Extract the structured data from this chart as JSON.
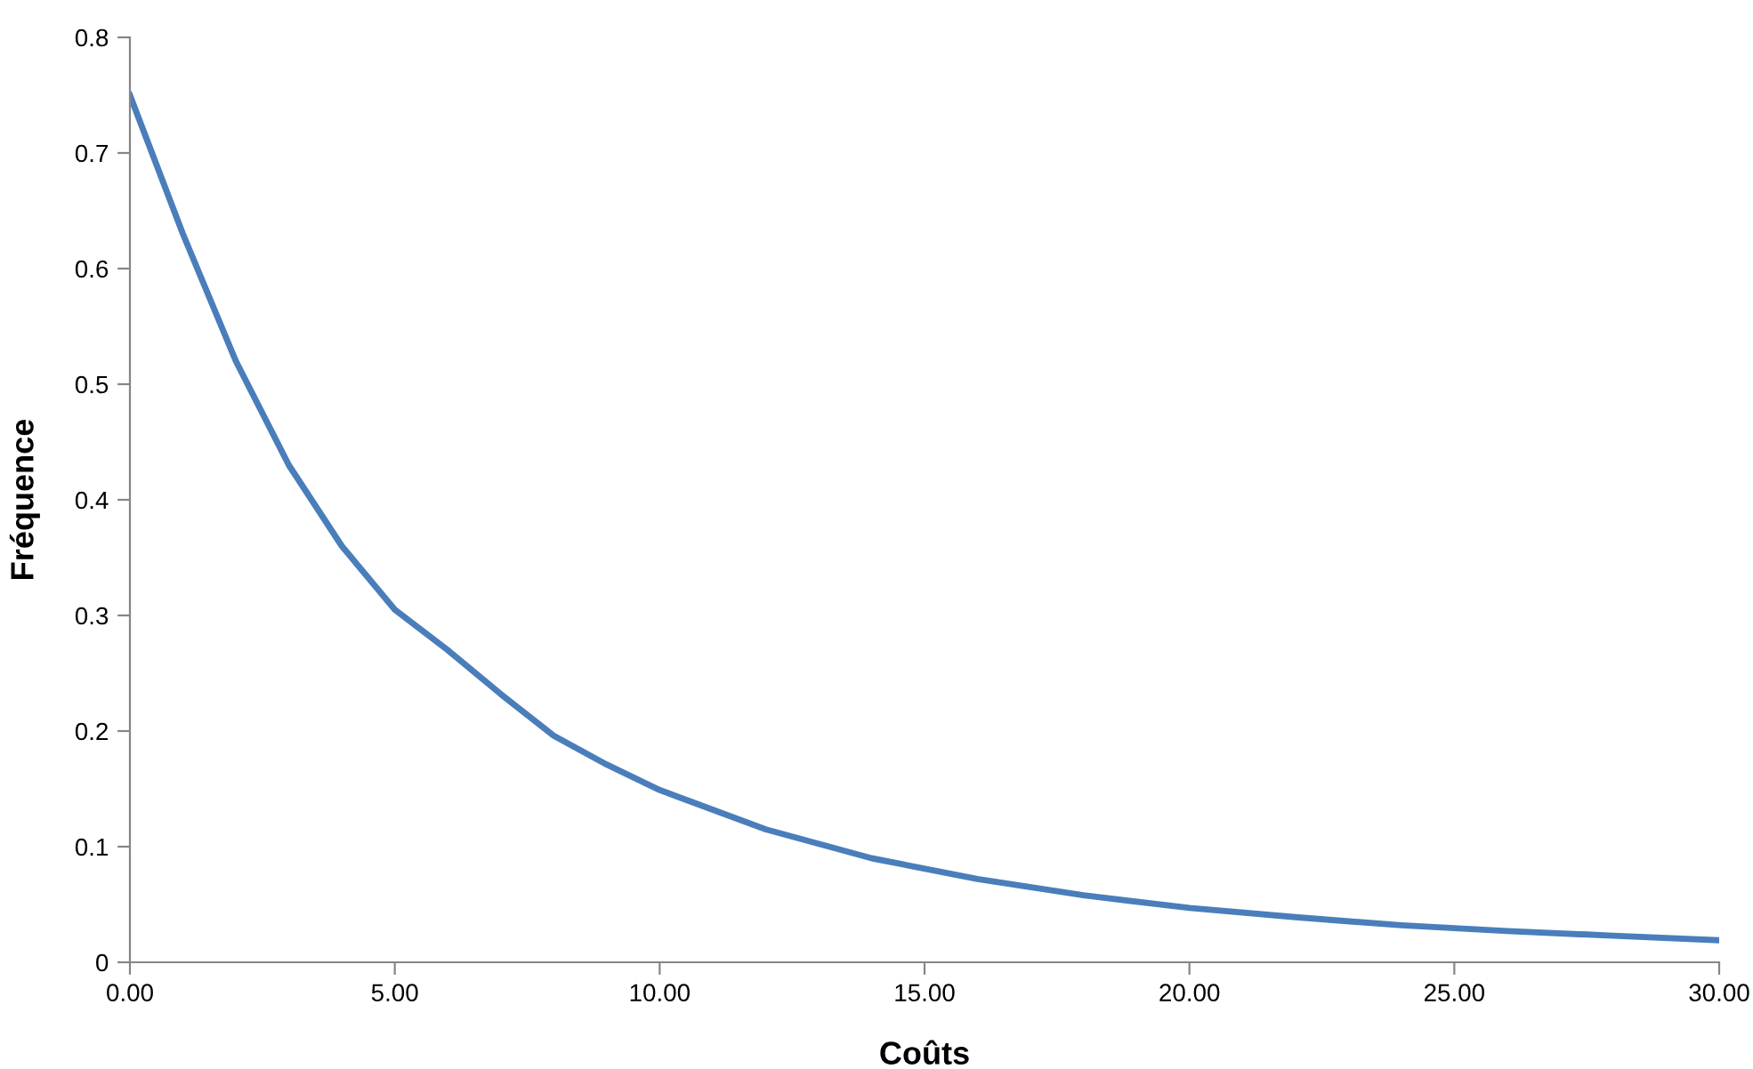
{
  "chart_data": {
    "type": "line",
    "xlabel": "Coûts",
    "ylabel": "Fréquence",
    "x": [
      0,
      1,
      2,
      3,
      4,
      5,
      6,
      7,
      8,
      9,
      10,
      12,
      14,
      16,
      18,
      20,
      22,
      24,
      26,
      28,
      30
    ],
    "series": [
      {
        "color": "#4a7ebb",
        "values": [
          0.75,
          0.63,
          0.52,
          0.43,
          0.36,
          0.305,
          0.27,
          0.232,
          0.196,
          0.171,
          0.149,
          0.115,
          0.09,
          0.072,
          0.058,
          0.047,
          0.039,
          0.032,
          0.027,
          0.023,
          0.019
        ]
      }
    ],
    "xlim": [
      0,
      30
    ],
    "xticks": [
      {
        "value": 0,
        "label": "0.00"
      },
      {
        "value": 5,
        "label": "5.00"
      },
      {
        "value": 10,
        "label": "10.00"
      },
      {
        "value": 15,
        "label": "15.00"
      },
      {
        "value": 20,
        "label": "20.00"
      },
      {
        "value": 25,
        "label": "25.00"
      },
      {
        "value": 30,
        "label": "30.00"
      }
    ],
    "ylim": [
      0,
      0.8
    ],
    "yticks": [
      0,
      0.1,
      0.2,
      0.3,
      0.4,
      0.5,
      0.6,
      0.7,
      0.8
    ],
    "grid": false,
    "legend": false,
    "marker": "none",
    "line_style": "solid"
  }
}
